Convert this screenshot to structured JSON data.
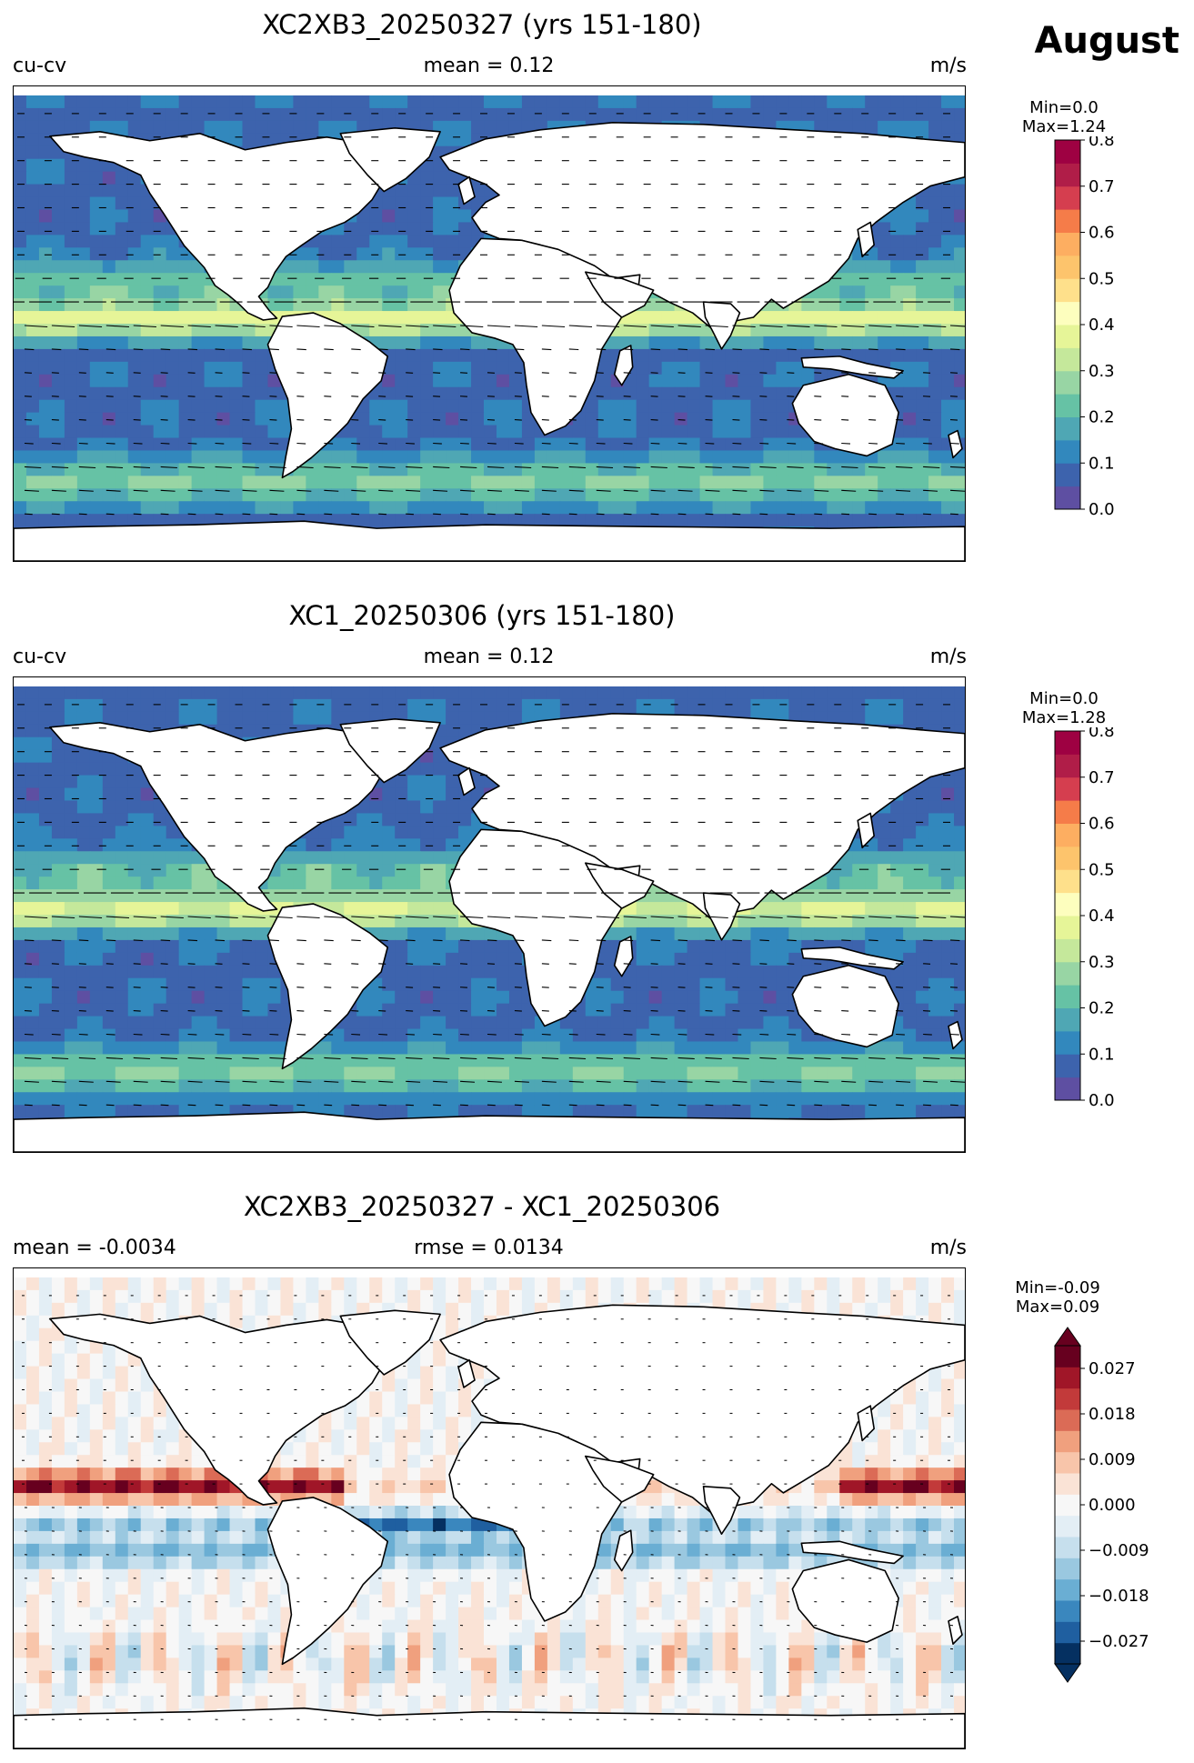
{
  "month": "August",
  "units": "m/s",
  "panels": [
    {
      "title": "XC2XB3_20250327 (yrs 151-180)",
      "left": "cu-cv",
      "center": "mean = 0.12",
      "right": "m/s",
      "min_label": "Min=0.0",
      "max_label": "Max=1.24",
      "min": 0.0,
      "max": 1.24,
      "colorbar_ticks": [
        "0.0",
        "0.1",
        "0.2",
        "0.3",
        "0.4",
        "0.5",
        "0.6",
        "0.7",
        "0.8"
      ],
      "colormap": [
        "#5e4fa2",
        "#3d63ad",
        "#3288bd",
        "#4fa7b4",
        "#66c2a5",
        "#98d5a4",
        "#c5e89b",
        "#e6f598",
        "#fdfebe",
        "#fee08b",
        "#fdc46c",
        "#fdae61",
        "#f57c49",
        "#d53e4f",
        "#b01d48",
        "#9e0142"
      ]
    },
    {
      "title": "XC1_20250306 (yrs 151-180)",
      "left": "cu-cv",
      "center": "mean = 0.12",
      "right": "m/s",
      "min_label": "Min=0.0",
      "max_label": "Max=1.28",
      "min": 0.0,
      "max": 1.28,
      "colorbar_ticks": [
        "0.0",
        "0.1",
        "0.2",
        "0.3",
        "0.4",
        "0.5",
        "0.6",
        "0.7",
        "0.8"
      ],
      "colormap": [
        "#5e4fa2",
        "#3d63ad",
        "#3288bd",
        "#4fa7b4",
        "#66c2a5",
        "#98d5a4",
        "#c5e89b",
        "#e6f598",
        "#fdfebe",
        "#fee08b",
        "#fdc46c",
        "#fdae61",
        "#f57c49",
        "#d53e4f",
        "#b01d48",
        "#9e0142"
      ]
    },
    {
      "title": "XC2XB3_20250327 - XC1_20250306",
      "left": "mean = -0.0034",
      "center": "rmse = 0.0134",
      "right": "m/s",
      "min_label": "Min=-0.09",
      "max_label": "Max=0.09",
      "min": -0.09,
      "max": 0.09,
      "colorbar_ticks": [
        "−0.027",
        "−0.018",
        "−0.009",
        "0.000",
        "0.009",
        "0.018",
        "0.027"
      ],
      "colormap": [
        "#053061",
        "#1f5fa0",
        "#3a87be",
        "#6aaed3",
        "#9ac8e0",
        "#c6dfed",
        "#e3eef5",
        "#f7f7f7",
        "#fae3d6",
        "#f8c5aa",
        "#f0a07e",
        "#db6b56",
        "#c23a3a",
        "#a01628",
        "#67001f"
      ]
    }
  ]
}
